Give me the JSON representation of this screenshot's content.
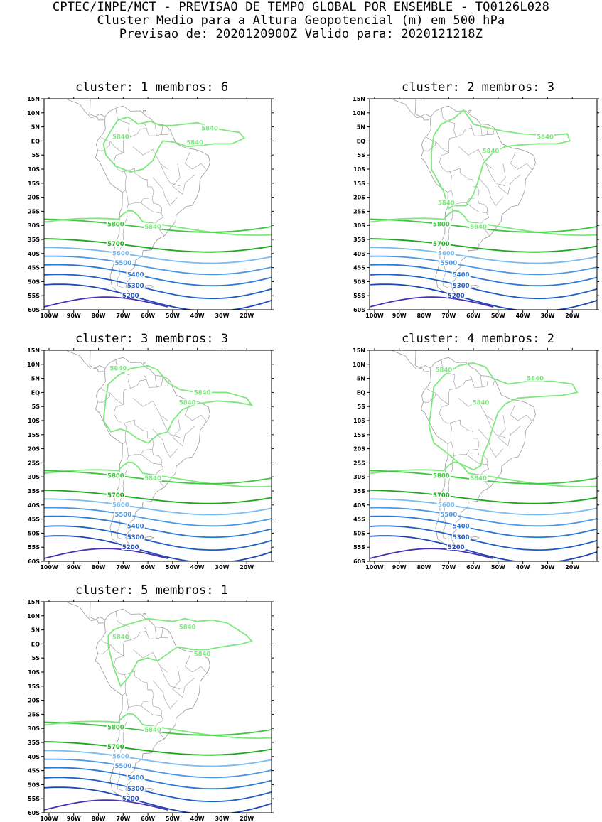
{
  "header": {
    "line1": "CPTEC/INPE/MCT - PREVISAO DE TEMPO GLOBAL POR ENSEMBLE - TQ0126L028",
    "line2": "Cluster Medio para a Altura Geopotencial (m) em 500 hPa",
    "line3": "Previsao de: 2020120900Z    Valido para: 2020121218Z"
  },
  "axes": {
    "lat_labels": [
      "15N",
      "10N",
      "5N",
      "EQ",
      "5S",
      "10S",
      "15S",
      "20S",
      "25S",
      "30S",
      "35S",
      "40S",
      "45S",
      "50S",
      "55S",
      "60S"
    ],
    "lon_labels": [
      "100W",
      "90W",
      "80W",
      "70W",
      "60W",
      "50W",
      "40W",
      "30W",
      "20W"
    ]
  },
  "contour_levels": [
    "5840",
    "5800",
    "5700",
    "5600",
    "5500",
    "5400",
    "5300",
    "5200"
  ],
  "colors": {
    "c5840": "#7de87d",
    "c5800": "#3ec63e",
    "c5700": "#1ea81e",
    "c5600": "#7bbcf0",
    "c5500": "#4a98e6",
    "c5400": "#2a78d8",
    "c5300": "#1f5ec4",
    "c5200": "#1a48b4",
    "c5100": "#4b2fb0",
    "coast": "#9a9a9a"
  },
  "panels": [
    {
      "title": "cluster: 1   membros: 6"
    },
    {
      "title": "cluster: 2   membros: 3"
    },
    {
      "title": "cluster: 3   membros: 3"
    },
    {
      "title": "cluster: 4   membros: 2"
    },
    {
      "title": "cluster: 5   membros: 1"
    }
  ]
}
